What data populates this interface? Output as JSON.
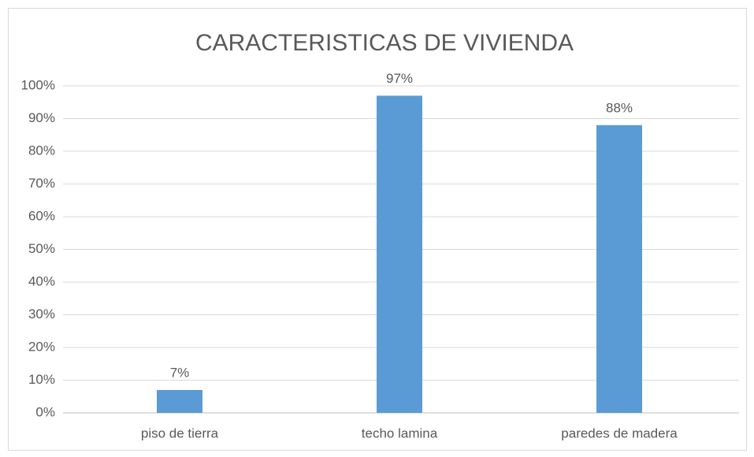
{
  "chart_data": {
    "type": "bar",
    "title": "CARACTERISTICAS DE VIVIENDA",
    "categories": [
      "piso de tierra",
      "techo lamina",
      "paredes de madera"
    ],
    "values": [
      7,
      97,
      88
    ],
    "value_labels": [
      "7%",
      "97%",
      "88%"
    ],
    "color": "#5b9bd5",
    "ylim": [
      0,
      100
    ],
    "yticks": [
      {
        "value": 0,
        "label": "0%"
      },
      {
        "value": 10,
        "label": "10%"
      },
      {
        "value": 20,
        "label": "20%"
      },
      {
        "value": 30,
        "label": "30%"
      },
      {
        "value": 40,
        "label": "40%"
      },
      {
        "value": 50,
        "label": "50%"
      },
      {
        "value": 60,
        "label": "60%"
      },
      {
        "value": 70,
        "label": "70%"
      },
      {
        "value": 80,
        "label": "80%"
      },
      {
        "value": 90,
        "label": "90%"
      },
      {
        "value": 100,
        "label": "100%"
      }
    ],
    "grid": true
  }
}
